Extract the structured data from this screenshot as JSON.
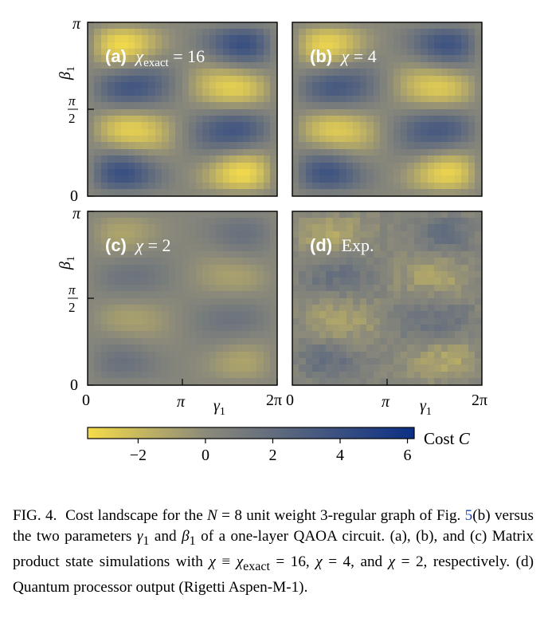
{
  "figure": {
    "panels": [
      {
        "id": "a",
        "label_bold": "(a)",
        "label_math_prefix": "χ",
        "label_math_sub": "exact",
        "label_value": " = 16"
      },
      {
        "id": "b",
        "label_bold": "(b)",
        "label_math_prefix": "χ",
        "label_math_sub": "",
        "label_value": " = 4"
      },
      {
        "id": "c",
        "label_bold": "(c)",
        "label_math_prefix": "χ",
        "label_math_sub": "",
        "label_value": " = 2"
      },
      {
        "id": "d",
        "label_bold": "(d)",
        "label_math_prefix": "",
        "label_math_sub": "",
        "label_value": "Exp."
      }
    ],
    "y_axis": {
      "label_main": "β",
      "label_sub": "1",
      "ticks": [
        "0",
        "π/2",
        "π"
      ]
    },
    "x_axis": {
      "label_main": "γ",
      "label_sub": "1",
      "ticks": [
        "0",
        "π",
        "2π"
      ]
    },
    "colorbar": {
      "label": "Cost C",
      "ticks": [
        "−2",
        "0",
        "2",
        "4",
        "6"
      ],
      "tick_values": [
        -2,
        0,
        2,
        4,
        6
      ],
      "range": [
        -3.5,
        6.2
      ],
      "colors": {
        "low": "#f5dc4a",
        "mid": "#8c8a7a",
        "high": "#0b2f85"
      }
    }
  },
  "chart_data": {
    "type": "heatmap",
    "x": {
      "label": "γ1",
      "range": [
        "0",
        "2π"
      ]
    },
    "y": {
      "label": "β1",
      "range": [
        "0",
        "π"
      ]
    },
    "colorbar": {
      "label": "Cost C",
      "range": [
        -3.5,
        6.2
      ]
    },
    "panels": [
      "(a) χexact = 16",
      "(b) χ = 4",
      "(c) χ = 2",
      "(d) Exp."
    ]
  },
  "caption": {
    "prefix": "FIG. 4.",
    "t1": "Cost landscape for the ",
    "t2": "N",
    "t3": " = 8 unit weight 3-regular graph of Fig. ",
    "ref": "5",
    "t4": "(b) versus the two parameters ",
    "t5": "γ",
    "t5sub": "1",
    "t6": " and ",
    "t7": "β",
    "t7sub": "1",
    "t8": " of a one-layer QAOA circuit. (a), (b), and (c) Matrix product state simulations with ",
    "t9": "χ",
    "t10": " ≡ ",
    "t11": "χ",
    "t11sub": "exact",
    "t12": " = 16, ",
    "t13": "χ",
    "t14": " = 4, and ",
    "t15": "χ",
    "t16": " = 2, respectively. (d) Quantum processor output (Rigetti Aspen-M-1)."
  }
}
